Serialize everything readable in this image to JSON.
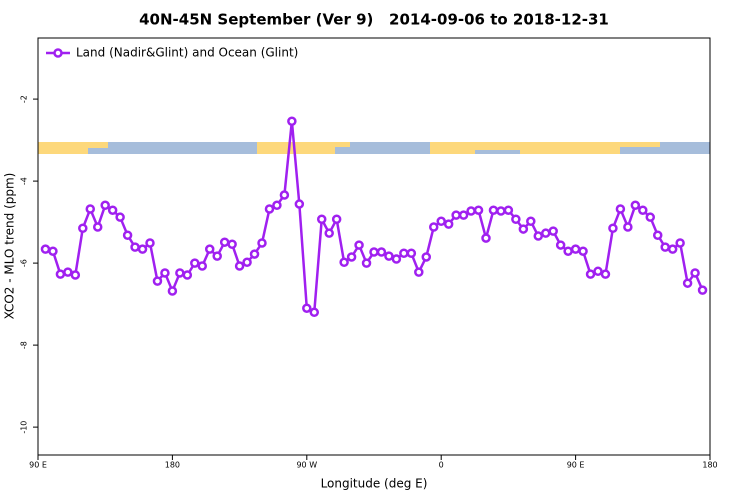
{
  "chart_data": {
    "type": "line",
    "title": "40N-45N September (Ver 9)   2014-09-06 to 2018-12-31",
    "xlabel": "Longitude (deg E)",
    "ylabel": "XCO2 - MLO trend (ppm)",
    "x": [
      95,
      100,
      105,
      110,
      115,
      120,
      125,
      130,
      135,
      140,
      145,
      150,
      155,
      160,
      165,
      170,
      175,
      180,
      185,
      190,
      195,
      200,
      205,
      210,
      215,
      220,
      225,
      230,
      235,
      240,
      245,
      250,
      255,
      260,
      265,
      270,
      275,
      280,
      285,
      290,
      295,
      300,
      305,
      310,
      315,
      320,
      325,
      330,
      335,
      340,
      345,
      350,
      355,
      360,
      365,
      370,
      375,
      380,
      385,
      390,
      395,
      400,
      405,
      410,
      415,
      420,
      425,
      430,
      435,
      440,
      445,
      450,
      455,
      460,
      465,
      470,
      475,
      480,
      485,
      490,
      495,
      500,
      505,
      510,
      515,
      520,
      525,
      530,
      535
    ],
    "series": [
      {
        "name": "Land (Nadir&Glint) and Ocean (Glint)",
        "color": "#a020f0",
        "values": [
          -5.66,
          -5.71,
          -6.27,
          -6.22,
          -6.29,
          -5.15,
          -4.68,
          -5.12,
          -4.59,
          -4.71,
          -4.88,
          -5.32,
          -5.61,
          -5.66,
          -5.51,
          -6.44,
          -6.24,
          -6.68,
          -6.24,
          -6.29,
          -6.0,
          -6.07,
          -5.66,
          -5.83,
          -5.49,
          -5.54,
          -6.07,
          -5.98,
          -5.78,
          -5.51,
          -4.68,
          -4.59,
          -4.34,
          -2.54,
          -4.56,
          -7.1,
          -7.2,
          -4.93,
          -5.27,
          -4.93,
          -5.98,
          -5.85,
          -5.56,
          -6.0,
          -5.73,
          -5.73,
          -5.83,
          -5.9,
          -5.76,
          -5.76,
          -6.22,
          -5.85,
          -5.12,
          -4.98,
          -5.05,
          -4.83,
          -4.83,
          -4.73,
          -4.71,
          -5.39,
          -4.71,
          -4.73,
          -4.71,
          -4.93,
          -5.17,
          -4.98,
          -5.34,
          -5.27,
          -5.22,
          -5.56,
          -5.71,
          -5.66,
          -5.71,
          -6.27,
          -6.2,
          -6.27,
          -5.15,
          -4.68,
          -5.12,
          -4.59,
          -4.71,
          -4.88,
          -5.32,
          -5.61,
          -5.66,
          -5.51,
          -6.49,
          -6.24,
          -6.66
        ]
      }
    ],
    "xlim": [
      90,
      540
    ],
    "xticks": [
      {
        "value": 90,
        "label": "90 E"
      },
      180,
      {
        "value": 270,
        "label": "90 W"
      },
      {
        "value": 360,
        "label": "0"
      },
      {
        "value": 450,
        "label": "90 E"
      },
      {
        "value": 540,
        "label": "180"
      }
    ],
    "ylim": [
      -10.68,
      -0.51
    ],
    "yticks": [
      -10,
      -8,
      -6,
      -4,
      -2
    ],
    "legend": "upper left"
  }
}
